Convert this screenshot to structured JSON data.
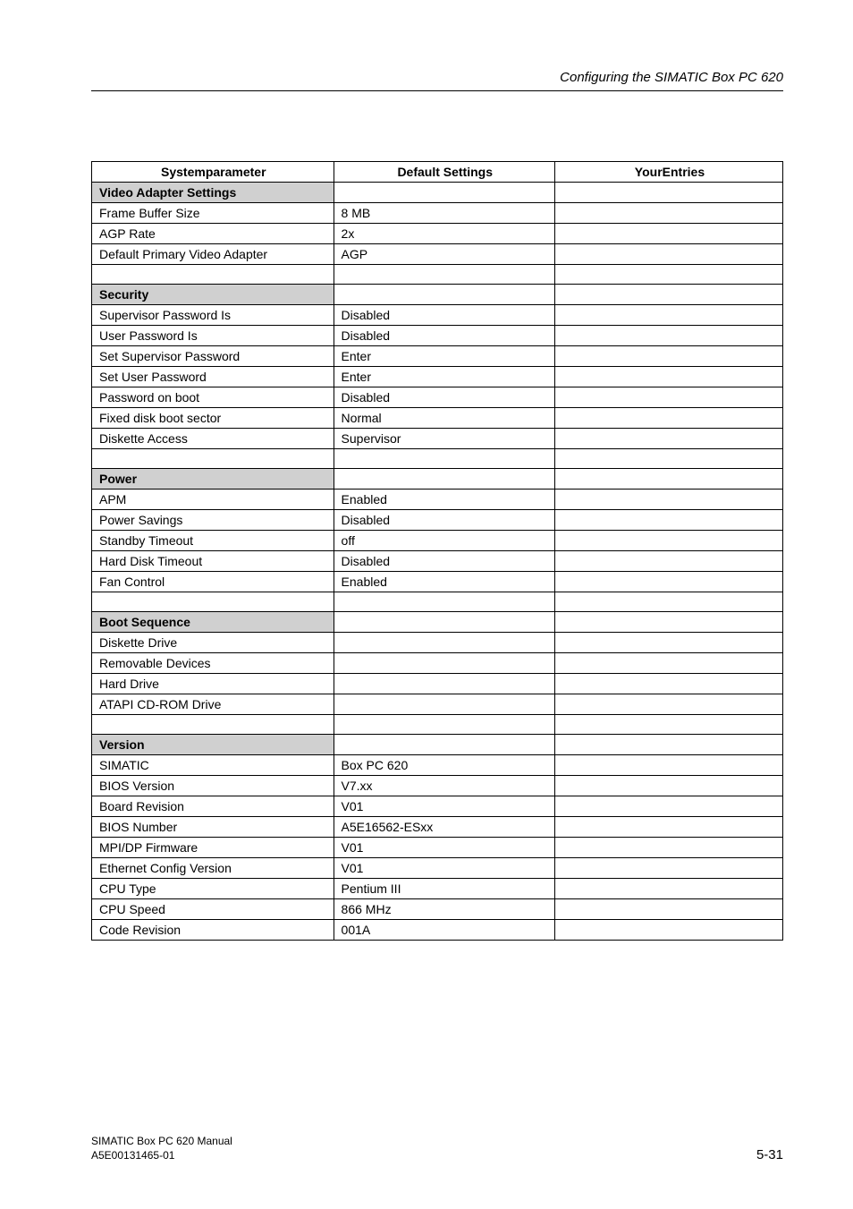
{
  "header": {
    "title": "Configuring the SIMATIC Box PC 620"
  },
  "table": {
    "columns": {
      "param": "Systemparameter",
      "default": "Default Settings",
      "entries": "YourEntries"
    },
    "sections": [
      {
        "title": "Video Adapter Settings",
        "rows": [
          {
            "param": "Frame Buffer Size",
            "default": "8 MB",
            "entries": ""
          },
          {
            "param": "AGP Rate",
            "default": "2x",
            "entries": ""
          },
          {
            "param": "Default Primary Video Adapter",
            "default": "AGP",
            "entries": ""
          }
        ]
      },
      {
        "title": "Security",
        "rows": [
          {
            "param": "Supervisor Password Is",
            "default": "Disabled",
            "entries": ""
          },
          {
            "param": "User Password Is",
            "default": "Disabled",
            "entries": ""
          },
          {
            "param": "Set Supervisor Password",
            "default": "Enter",
            "entries": ""
          },
          {
            "param": "Set User Password",
            "default": "Enter",
            "entries": ""
          },
          {
            "param": "Password on boot",
            "default": "Disabled",
            "entries": ""
          },
          {
            "param": "Fixed disk boot sector",
            "default": "Normal",
            "entries": ""
          },
          {
            "param": "Diskette Access",
            "default": "Supervisor",
            "entries": ""
          }
        ]
      },
      {
        "title": "Power",
        "rows": [
          {
            "param": "APM",
            "default": "Enabled",
            "entries": ""
          },
          {
            "param": "Power Savings",
            "default": "Disabled",
            "entries": ""
          },
          {
            "param": "Standby Timeout",
            "default": "off",
            "entries": ""
          },
          {
            "param": "Hard Disk Timeout",
            "default": "Disabled",
            "entries": ""
          },
          {
            "param": "Fan Control",
            "default": "Enabled",
            "entries": ""
          }
        ]
      },
      {
        "title": "Boot Sequence",
        "rows": [
          {
            "param": "Diskette Drive",
            "default": "",
            "entries": ""
          },
          {
            "param": "Removable Devices",
            "default": "",
            "entries": ""
          },
          {
            "param": "Hard Drive",
            "default": "",
            "entries": ""
          },
          {
            "param": "ATAPI CD-ROM Drive",
            "default": "",
            "entries": ""
          }
        ]
      },
      {
        "title": "Version",
        "rows": [
          {
            "param": "SIMATIC",
            "default": "Box PC 620",
            "entries": ""
          },
          {
            "param": "BIOS Version",
            "default": "V7.xx",
            "entries": ""
          },
          {
            "param": "Board Revision",
            "default": "V01",
            "entries": ""
          },
          {
            "param": "BIOS Number",
            "default": "A5E16562-ESxx",
            "entries": ""
          },
          {
            "param": "MPI/DP Firmware",
            "default": "V01",
            "entries": ""
          },
          {
            "param": "Ethernet Config Version",
            "default": "V01",
            "entries": ""
          },
          {
            "param": "CPU Type",
            "default": "Pentium III",
            "entries": ""
          },
          {
            "param": "CPU Speed",
            "default": "866 MHz",
            "entries": ""
          },
          {
            "param": "Code Revision",
            "default": "001A",
            "entries": ""
          }
        ]
      }
    ]
  },
  "footer": {
    "left_line1": "SIMATIC Box PC 620  Manual",
    "left_line2": "A5E00131465-01",
    "right": "5-31"
  }
}
